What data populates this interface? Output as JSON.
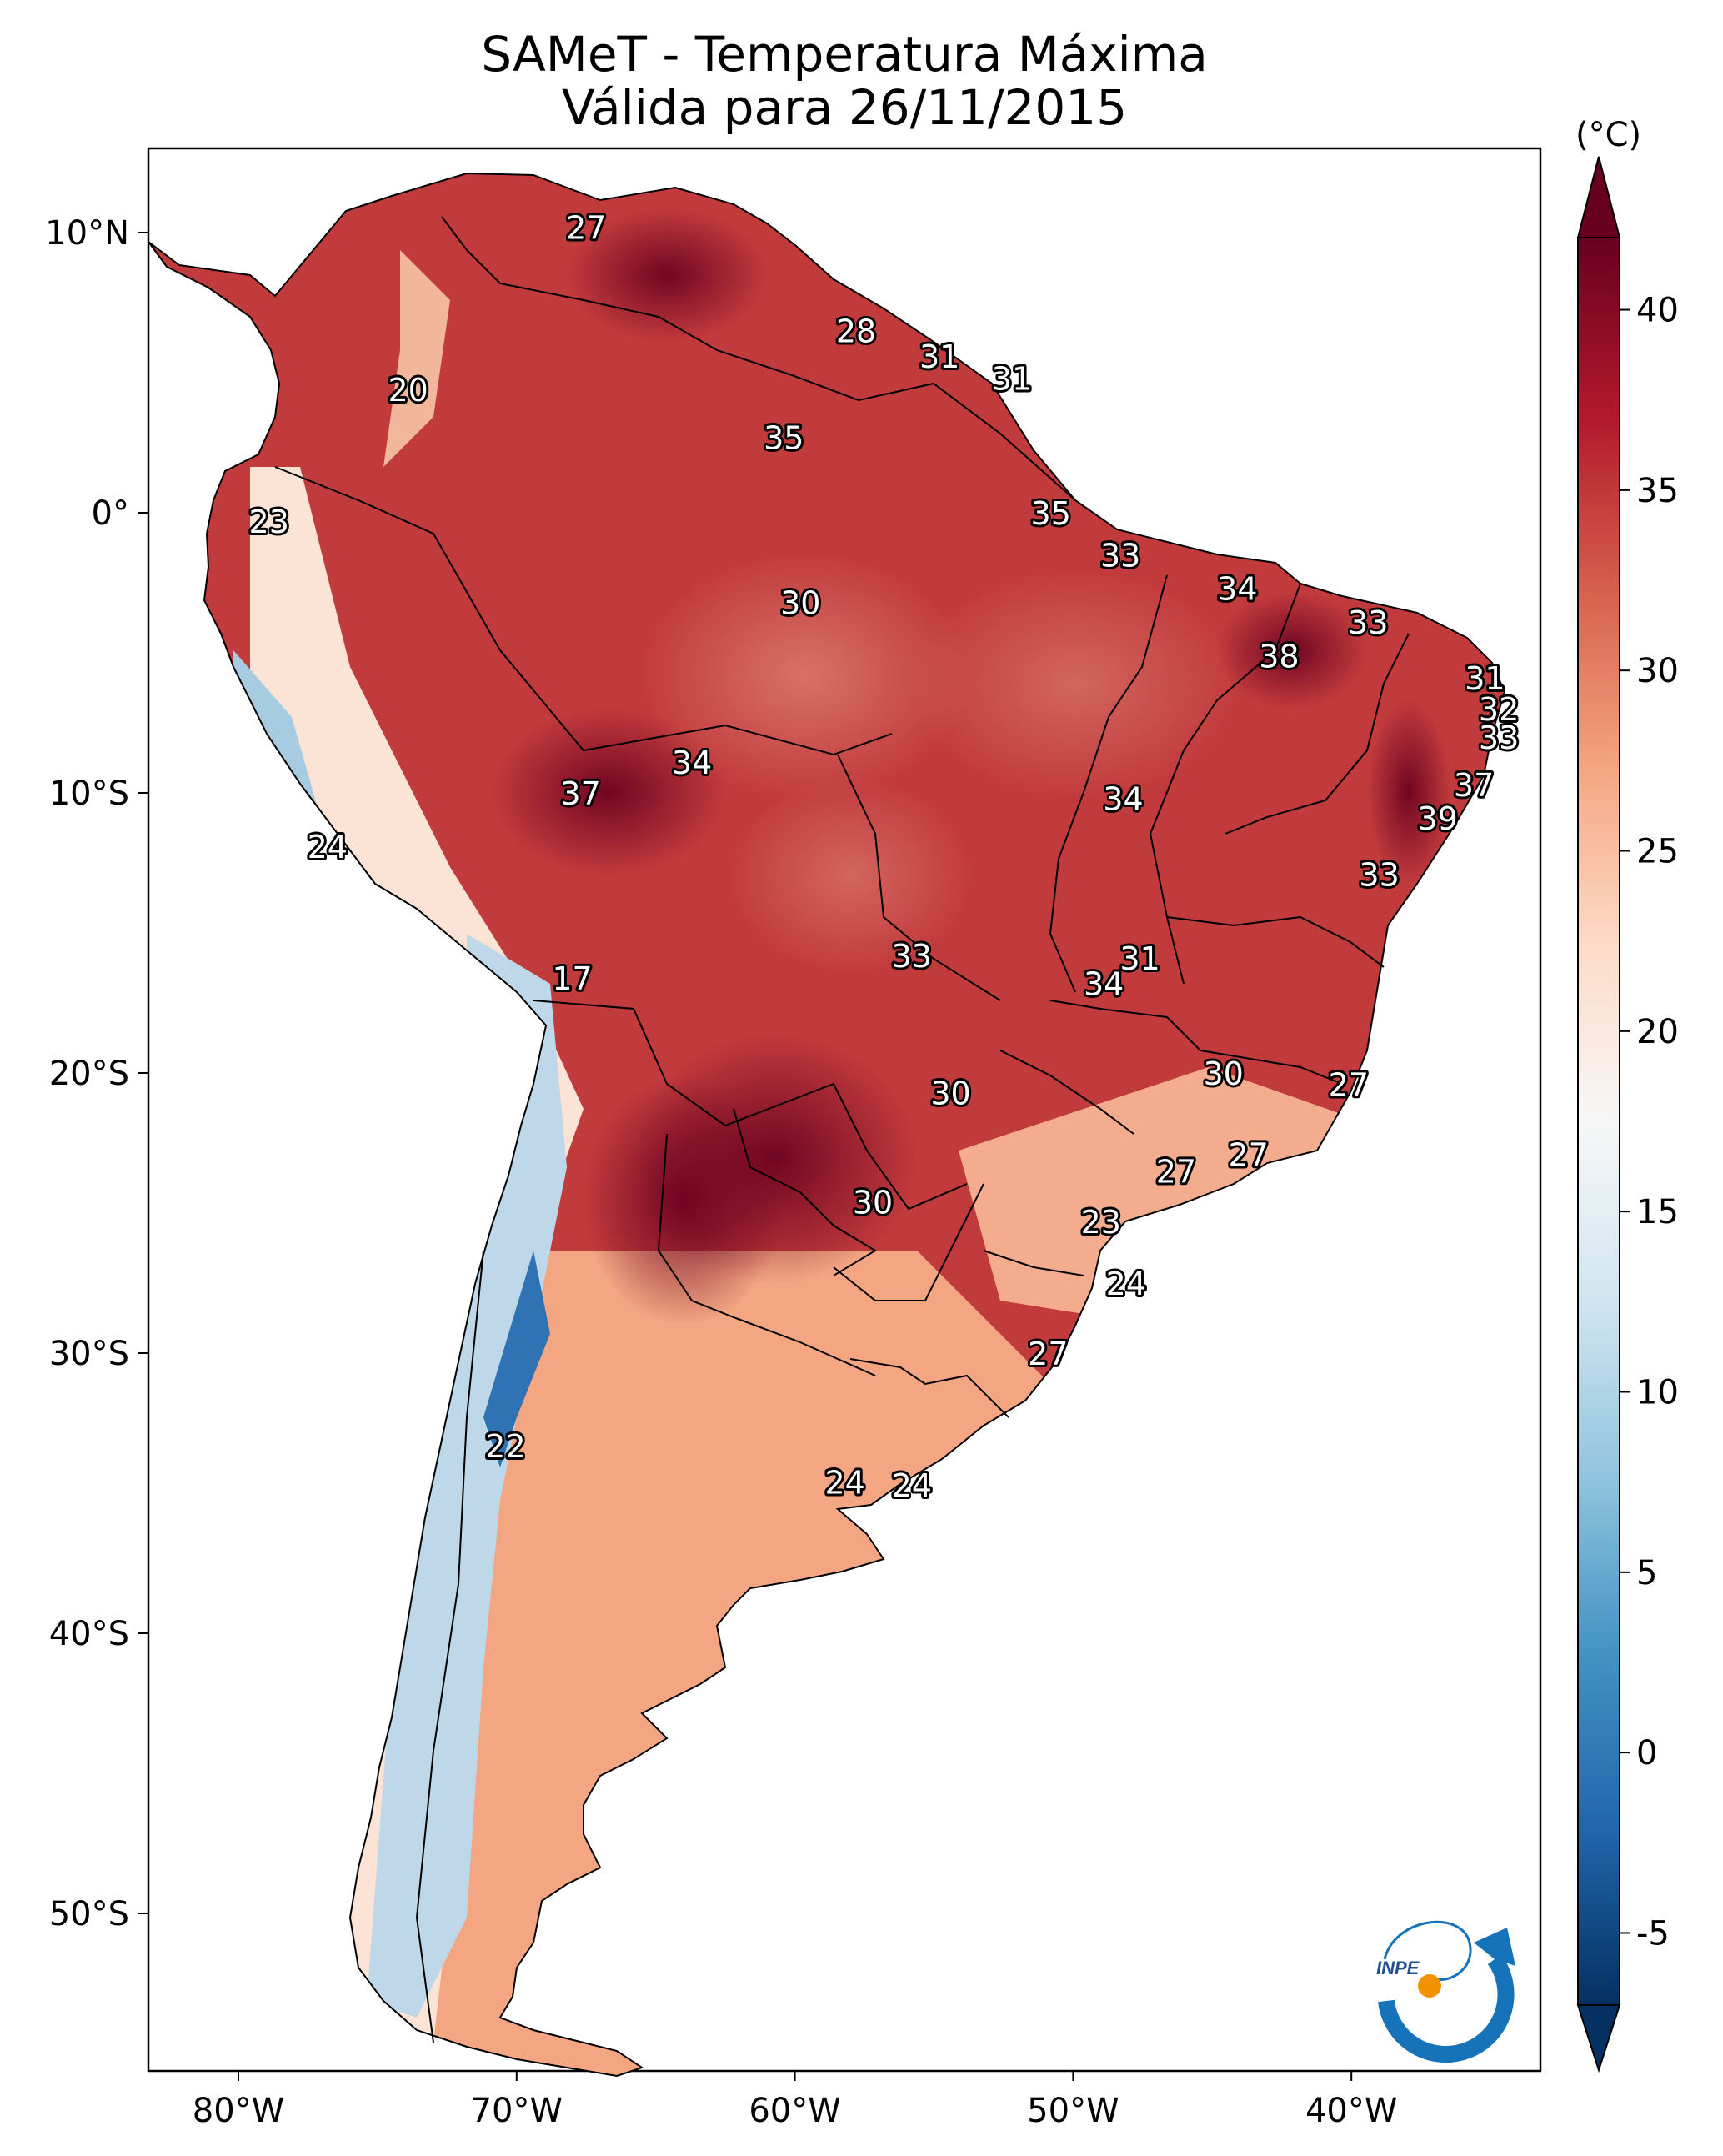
{
  "title_line1": "SAMeT - Temperatura Máxima",
  "title_line2": "Válida para 26/11/2015",
  "colorbar": {
    "unit": "(°C)",
    "ticks": [
      "40",
      "35",
      "30",
      "25",
      "20",
      "15",
      "10",
      "5",
      "0",
      "-5"
    ],
    "range": [
      -7,
      42
    ],
    "colors": [
      "#053061",
      "#2166ac",
      "#4393c3",
      "#92c5de",
      "#d1e5f0",
      "#f7f7f7",
      "#fddbc7",
      "#f4a582",
      "#d6604d",
      "#b2182b",
      "#67001f"
    ]
  },
  "map": {
    "lon_ticks": [
      "80°W",
      "70°W",
      "60°W",
      "50°W",
      "40°W"
    ],
    "lat_ticks": [
      "10°N",
      "0°",
      "10°S",
      "20°S",
      "30°S",
      "40°S",
      "50°S"
    ],
    "labels": [
      {
        "text": "27",
        "lon": -67.5,
        "lat": 10.2
      },
      {
        "text": "28",
        "lon": -57.8,
        "lat": 6.5
      },
      {
        "text": "31",
        "lon": -54.8,
        "lat": 5.6
      },
      {
        "text": "31",
        "lon": -52.2,
        "lat": 4.8
      },
      {
        "text": "20",
        "lon": -73.9,
        "lat": 4.4
      },
      {
        "text": "35",
        "lon": -60.4,
        "lat": 2.7
      },
      {
        "text": "35",
        "lon": -50.8,
        "lat": 0.0
      },
      {
        "text": "23",
        "lon": -78.9,
        "lat": -0.3
      },
      {
        "text": "33",
        "lon": -48.3,
        "lat": -1.5
      },
      {
        "text": "34",
        "lon": -44.1,
        "lat": -2.7
      },
      {
        "text": "33",
        "lon": -39.4,
        "lat": -3.9
      },
      {
        "text": "30",
        "lon": -59.8,
        "lat": -3.2
      },
      {
        "text": "38",
        "lon": -42.6,
        "lat": -5.1
      },
      {
        "text": "31",
        "lon": -35.2,
        "lat": -5.9
      },
      {
        "text": "32",
        "lon": -34.7,
        "lat": -7.0
      },
      {
        "text": "33",
        "lon": -34.7,
        "lat": -8.0
      },
      {
        "text": "34",
        "lon": -63.7,
        "lat": -8.9
      },
      {
        "text": "37",
        "lon": -67.7,
        "lat": -10.0
      },
      {
        "text": "37",
        "lon": -35.6,
        "lat": -9.7
      },
      {
        "text": "34",
        "lon": -48.2,
        "lat": -10.2
      },
      {
        "text": "39",
        "lon": -36.9,
        "lat": -10.9
      },
      {
        "text": "24",
        "lon": -76.8,
        "lat": -11.9
      },
      {
        "text": "33",
        "lon": -39.0,
        "lat": -12.9
      },
      {
        "text": "33",
        "lon": -55.8,
        "lat": -15.8
      },
      {
        "text": "31",
        "lon": -47.6,
        "lat": -15.9
      },
      {
        "text": "34",
        "lon": -48.9,
        "lat": -16.8
      },
      {
        "text": "17",
        "lon": -68.0,
        "lat": -16.6
      },
      {
        "text": "30",
        "lon": -44.6,
        "lat": -20.0
      },
      {
        "text": "27",
        "lon": -40.1,
        "lat": -20.4
      },
      {
        "text": "30",
        "lon": -54.4,
        "lat": -20.7
      },
      {
        "text": "27",
        "lon": -43.7,
        "lat": -22.9
      },
      {
        "text": "27",
        "lon": -46.3,
        "lat": -23.5
      },
      {
        "text": "30",
        "lon": -57.2,
        "lat": -24.6
      },
      {
        "text": "23",
        "lon": -49.0,
        "lat": -25.3
      },
      {
        "text": "24",
        "lon": -48.1,
        "lat": -27.5
      },
      {
        "text": "27",
        "lon": -50.9,
        "lat": -30.0
      },
      {
        "text": "22",
        "lon": -70.4,
        "lat": -33.3
      },
      {
        "text": "24",
        "lon": -58.2,
        "lat": -34.6
      },
      {
        "text": "24",
        "lon": -55.8,
        "lat": -34.7
      }
    ]
  },
  "logo": {
    "text": "INPE"
  }
}
